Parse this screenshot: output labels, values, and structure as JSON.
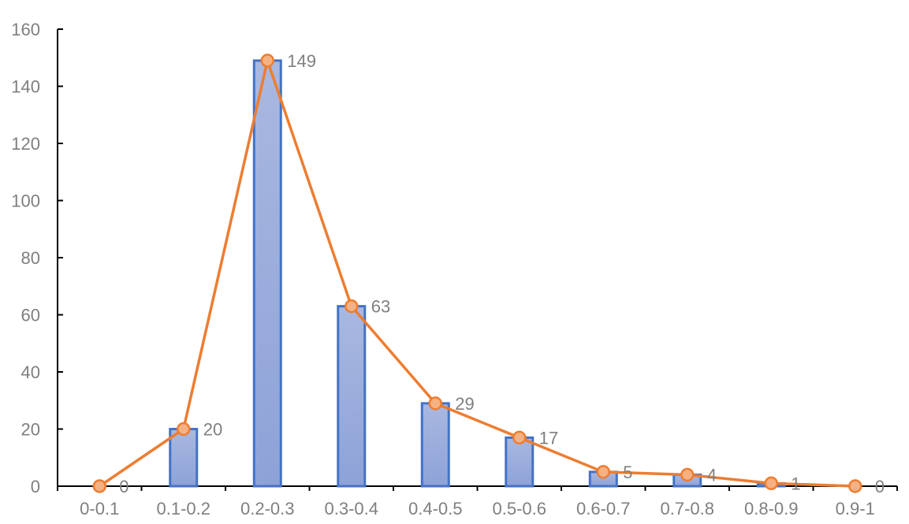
{
  "chart_data": {
    "type": "bar",
    "title": "",
    "xlabel": "",
    "ylabel": "",
    "categories": [
      "0-0.1",
      "0.1-0.2",
      "0.2-0.3",
      "0.3-0.4",
      "0.4-0.5",
      "0.5-0.6",
      "0.6-0.7",
      "0.7-0.8",
      "0.8-0.9",
      "0.9-1"
    ],
    "series": [
      {
        "type": "bar",
        "values": [
          0,
          20,
          149,
          63,
          29,
          17,
          5,
          4,
          1,
          0
        ]
      },
      {
        "type": "line",
        "values": [
          0,
          20,
          149,
          63,
          29,
          17,
          5,
          4,
          1,
          0
        ]
      }
    ],
    "data_labels": [
      "0",
      "20",
      "149",
      "63",
      "29",
      "17",
      "5",
      "4",
      "1",
      "0"
    ],
    "ylim": [
      0,
      160
    ],
    "yticks": [
      0,
      20,
      40,
      60,
      80,
      100,
      120,
      140,
      160
    ],
    "grid": false,
    "legend": "none",
    "colors": {
      "bar_fill_top": "#a9b8e0",
      "bar_fill_bottom": "#8ea2d8",
      "bar_stroke": "#4472c4",
      "line": "#ed7d31",
      "marker_fill": "#f4b183",
      "axis": "#000000",
      "text": "#7f7f7f"
    }
  }
}
